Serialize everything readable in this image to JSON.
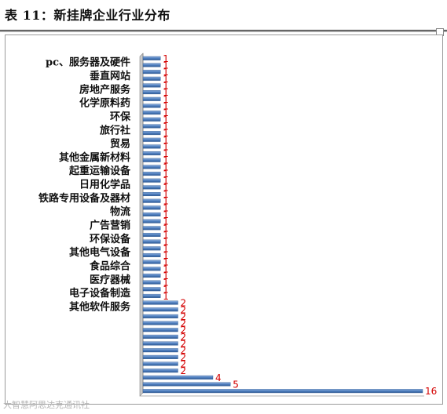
{
  "page": {
    "title": "表 11：新挂牌企业行业分布",
    "watermark": "大智慧阿思达克通讯社"
  },
  "chart_data": {
    "type": "bar",
    "orientation": "horizontal",
    "categories_ticked": [
      "pc、服务器及硬件",
      "垂直网站",
      "房地产服务",
      "化学原料药",
      "环保",
      "旅行社",
      "贸易",
      "其他金属新材料",
      "起重运输设备",
      "日用化学品",
      "铁路专用设备及器材",
      "物流",
      "广告营销",
      "环保设备",
      "其他电气设备",
      "食品综合",
      "医疗器械",
      "电子设备制造",
      "其他软件服务"
    ],
    "values": [
      1,
      1,
      1,
      1,
      1,
      1,
      1,
      1,
      1,
      1,
      1,
      1,
      1,
      1,
      1,
      1,
      1,
      1,
      1,
      1,
      1,
      1,
      1,
      1,
      1,
      1,
      1,
      1,
      1,
      1,
      1,
      1,
      1,
      1,
      1,
      1,
      2,
      2,
      2,
      2,
      2,
      2,
      2,
      2,
      2,
      2,
      2,
      4,
      5,
      16
    ],
    "value_labels": [
      "1",
      "1",
      "1",
      "1",
      "1",
      "1",
      "1",
      "1",
      "1",
      "1",
      "1",
      "1",
      "1",
      "1",
      "1",
      "1",
      "1",
      "1",
      "1",
      "1",
      "1",
      "1",
      "1",
      "1",
      "1",
      "1",
      "1",
      "1",
      "1",
      "1",
      "1",
      "1",
      "1",
      "1",
      "1",
      "1",
      "2",
      "2",
      "2",
      "2",
      "2",
      "2",
      "2",
      "2",
      "2",
      "2",
      "2",
      "4",
      "5",
      "16"
    ],
    "xlim": [
      0,
      16
    ],
    "bar_color": "#4f7fbf",
    "value_label_color": "#d40000",
    "grid": false,
    "legend": "none"
  }
}
